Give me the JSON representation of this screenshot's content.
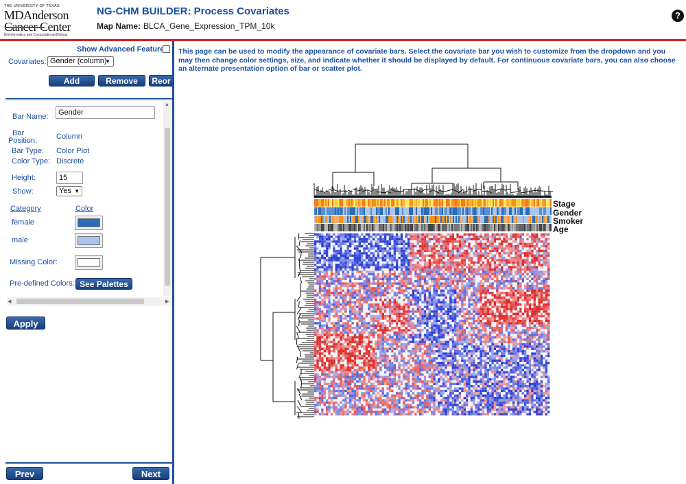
{
  "header": {
    "logo_university": "THE UNIVERSITY OF TEXAS",
    "logo_line1": "MDAnderson",
    "logo_line2": "Cancer Center",
    "logo_sub": "Bioinformatics and Computational Biology",
    "title": "NG-CHM BUILDER: Process Covariates",
    "map_name_label": "Map Name:",
    "map_name_value": "BLCA_Gene_Expression_TPM_10k",
    "help_icon": "?"
  },
  "left": {
    "show_advanced_label": "Show Advanced Features:",
    "covariates_label": "Covariates:",
    "covariates_selected": "Gender (column)",
    "add_label": "Add",
    "remove_label": "Remove",
    "reorder_label": "Reor",
    "bar_name_label": "Bar Name:",
    "bar_name_value": "Gender",
    "bar_position_label_1": "Bar",
    "bar_position_label_2": "Position:",
    "bar_position_value": "Column",
    "bar_type_label": "Bar Type:",
    "bar_type_value": "Color Plot",
    "color_type_label": "Color Type:",
    "color_type_value": "Discrete",
    "height_label": "Height:",
    "height_value": "15",
    "show_label": "Show:",
    "show_value": "Yes",
    "category_header": "Category",
    "color_header": "Color",
    "categories": [
      {
        "name": "female",
        "color": "#2b6cb6"
      },
      {
        "name": "male",
        "color": "#a9c5ec"
      }
    ],
    "missing_color_label": "Missing Color:",
    "missing_color": "#ffffff",
    "predefined_label": "Pre-defined Colors:",
    "see_palettes_label": "See Palettes",
    "apply_label": "Apply",
    "prev_label": "Prev",
    "next_label": "Next"
  },
  "main": {
    "intro": "This page can be used to modify the appearance of covariate bars. Select the covariate bar you wish to customize from the dropdown and you may then change color settings, size, and indicate whether it should be displayed by default. For continuous covariate bars, you can also choose an alternate presentation option of bar or scatter plot.",
    "covariate_labels": [
      "Stage",
      "Gender",
      "Smoker",
      "Age"
    ]
  },
  "colors": {
    "accent": "#1b4fa0",
    "rule": "#d71f1f",
    "heat_low": "#2b3fd6",
    "heat_high": "#e02a2a"
  }
}
